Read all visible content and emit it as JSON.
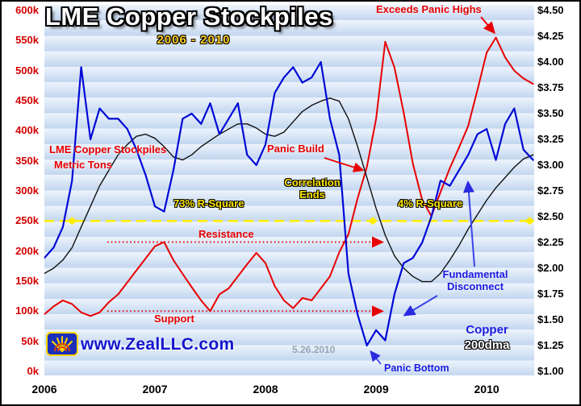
{
  "chart_data": {
    "type": "line",
    "title": "LME Copper Stockpiles",
    "subtitle": "2006 - 2010",
    "x_range": [
      2006.0,
      2010.43
    ],
    "x_ticks": [
      {
        "v": 2006,
        "label": "2006"
      },
      {
        "v": 2007,
        "label": "2007"
      },
      {
        "v": 2008,
        "label": "2008"
      },
      {
        "v": 2009,
        "label": "2009"
      },
      {
        "v": 2010,
        "label": "2010"
      }
    ],
    "y_left": {
      "range": [
        0,
        600
      ],
      "unit": "thousand metric tons",
      "ticks": [
        {
          "v": 600,
          "label": "600k"
        },
        {
          "v": 550,
          "label": "550k"
        },
        {
          "v": 500,
          "label": "500k"
        },
        {
          "v": 450,
          "label": "450k"
        },
        {
          "v": 400,
          "label": "400k"
        },
        {
          "v": 350,
          "label": "350k"
        },
        {
          "v": 300,
          "label": "300k"
        },
        {
          "v": 250,
          "label": "250k"
        },
        {
          "v": 200,
          "label": "200k"
        },
        {
          "v": 150,
          "label": "150k"
        },
        {
          "v": 100,
          "label": "100k"
        },
        {
          "v": 50,
          "label": "50k"
        },
        {
          "v": 0,
          "label": "0k"
        }
      ]
    },
    "y_right": {
      "range": [
        1.0,
        4.5
      ],
      "unit": "$ per pound",
      "ticks": [
        {
          "v": 4.5,
          "label": "$4.50"
        },
        {
          "v": 4.25,
          "label": "$4.25"
        },
        {
          "v": 4.0,
          "label": "$4.00"
        },
        {
          "v": 3.75,
          "label": "$3.75"
        },
        {
          "v": 3.5,
          "label": "$3.50"
        },
        {
          "v": 3.25,
          "label": "$3.25"
        },
        {
          "v": 3.0,
          "label": "$3.00"
        },
        {
          "v": 2.75,
          "label": "$2.75"
        },
        {
          "v": 2.5,
          "label": "$2.50"
        },
        {
          "v": 2.25,
          "label": "$2.25"
        },
        {
          "v": 2.0,
          "label": "$2.00"
        },
        {
          "v": 1.75,
          "label": "$1.75"
        },
        {
          "v": 1.5,
          "label": "$1.50"
        },
        {
          "v": 1.25,
          "label": "$1.25"
        },
        {
          "v": 1.0,
          "label": "$1.00"
        }
      ]
    },
    "x": [
      2006.0,
      2006.083,
      2006.167,
      2006.25,
      2006.333,
      2006.417,
      2006.5,
      2006.583,
      2006.667,
      2006.75,
      2006.833,
      2006.917,
      2007.0,
      2007.083,
      2007.167,
      2007.25,
      2007.333,
      2007.417,
      2007.5,
      2007.583,
      2007.667,
      2007.75,
      2007.833,
      2007.917,
      2008.0,
      2008.083,
      2008.167,
      2008.25,
      2008.333,
      2008.417,
      2008.5,
      2008.583,
      2008.667,
      2008.75,
      2008.833,
      2008.917,
      2009.0,
      2009.083,
      2009.167,
      2009.25,
      2009.333,
      2009.417,
      2009.5,
      2009.583,
      2009.667,
      2009.75,
      2009.833,
      2009.917,
      2010.0,
      2010.083,
      2010.167,
      2010.25,
      2010.333,
      2010.42
    ],
    "series": [
      {
        "id": "stockpiles",
        "name": "LME Copper Stockpiles (Metric Tons)",
        "axis": "left",
        "color": "#e80000",
        "stroke_width": 2,
        "values": [
          95,
          108,
          118,
          112,
          98,
          92,
          98,
          115,
          128,
          148,
          168,
          188,
          208,
          215,
          185,
          162,
          140,
          118,
          100,
          128,
          138,
          158,
          178,
          197,
          180,
          142,
          118,
          105,
          122,
          118,
          138,
          158,
          198,
          228,
          288,
          340,
          420,
          548,
          505,
          430,
          345,
          285,
          258,
          298,
          338,
          372,
          408,
          468,
          530,
          555,
          522,
          500,
          487,
          478
        ]
      },
      {
        "id": "dma200",
        "name": "200dma",
        "axis": "right",
        "color": "#111111",
        "stroke_width": 1.4,
        "values": [
          1.95,
          2.0,
          2.08,
          2.2,
          2.4,
          2.6,
          2.8,
          2.95,
          3.1,
          3.2,
          3.28,
          3.3,
          3.26,
          3.18,
          3.08,
          3.05,
          3.1,
          3.18,
          3.24,
          3.3,
          3.35,
          3.4,
          3.4,
          3.36,
          3.3,
          3.28,
          3.32,
          3.42,
          3.52,
          3.58,
          3.62,
          3.65,
          3.62,
          3.45,
          3.18,
          2.88,
          2.58,
          2.32,
          2.12,
          2.0,
          1.92,
          1.87,
          1.87,
          1.95,
          2.08,
          2.22,
          2.38,
          2.52,
          2.66,
          2.78,
          2.88,
          2.98,
          3.06,
          3.1
        ]
      },
      {
        "id": "copper",
        "name": "Copper",
        "axis": "right",
        "color": "#0009d6",
        "stroke_width": 2.2,
        "values": [
          2.1,
          2.2,
          2.4,
          2.85,
          3.95,
          3.25,
          3.55,
          3.45,
          3.45,
          3.35,
          3.15,
          2.9,
          2.6,
          2.55,
          2.95,
          3.45,
          3.5,
          3.4,
          3.6,
          3.3,
          3.45,
          3.6,
          3.1,
          3.0,
          3.2,
          3.7,
          3.85,
          3.95,
          3.8,
          3.85,
          4.0,
          3.45,
          3.1,
          1.95,
          1.55,
          1.25,
          1.4,
          1.3,
          1.75,
          2.05,
          2.1,
          2.25,
          2.5,
          2.85,
          2.8,
          2.95,
          3.1,
          3.3,
          3.35,
          3.05,
          3.4,
          3.55,
          3.15,
          3.05
        ]
      }
    ],
    "ref_lines": [
      {
        "id": "r-square-threshold-line",
        "value": 250,
        "color": "#ffee00",
        "width": 2.6,
        "dash": "12,7",
        "from": 2006.0,
        "to": 2010.43,
        "arrow": false,
        "diamonds": [
          2006.25,
          2008.97,
          2010.39
        ]
      },
      {
        "id": "resistance-line",
        "value": 215,
        "color": "#e80000",
        "width": 2,
        "dash": "1.5,3.2",
        "from": 2006.57,
        "to": 2009.05,
        "arrow": true,
        "diamonds": []
      },
      {
        "id": "support-line",
        "value": 100,
        "color": "#e80000",
        "width": 2,
        "dash": "1.5,3.2",
        "from": 2006.57,
        "to": 2009.05,
        "arrow": true,
        "diamonds": []
      }
    ],
    "annotations": {
      "exceeds_panic_highs": "Exceeds Panic Highs",
      "stockpiles_line1": "LME Copper Stockpiles",
      "stockpiles_line2": "Metric Tons",
      "panic_build": "Panic Build",
      "correlation_line1": "Correlation",
      "correlation_line2": "Ends",
      "r_square_73": "73% R-Square",
      "r_square_4": "4% R-Square",
      "resistance": "Resistance",
      "support": "Support",
      "fundamental_line1": "Fundamental",
      "fundamental_line2": "Disconnect",
      "copper_legend": "Copper",
      "dma_legend": "200dma",
      "panic_bottom": "Panic Bottom",
      "watermark": "5.26.2010",
      "website": "www.ZealLLC.com"
    }
  }
}
